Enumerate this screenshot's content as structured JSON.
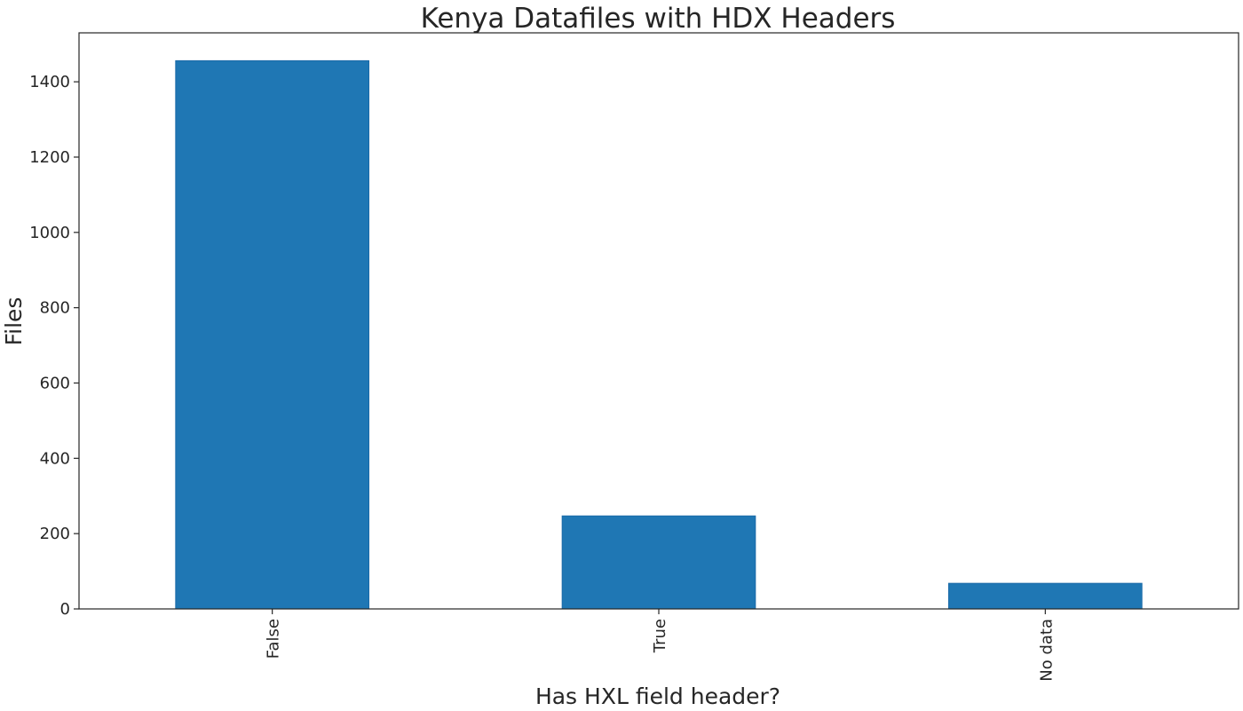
{
  "chart_data": {
    "type": "bar",
    "title": "Kenya Datafiles with HDX Headers",
    "xlabel": "Has HXL field header?",
    "ylabel": "Files",
    "categories": [
      "False",
      "True",
      "No data"
    ],
    "values": [
      1456,
      247,
      68
    ],
    "ylim": [
      0,
      1530
    ],
    "yticks": [
      0,
      200,
      400,
      600,
      800,
      1000,
      1200,
      1400
    ],
    "bar_color": "#1f77b4",
    "grid": false,
    "legend": "none",
    "x_tick_rotation": "vertical"
  }
}
